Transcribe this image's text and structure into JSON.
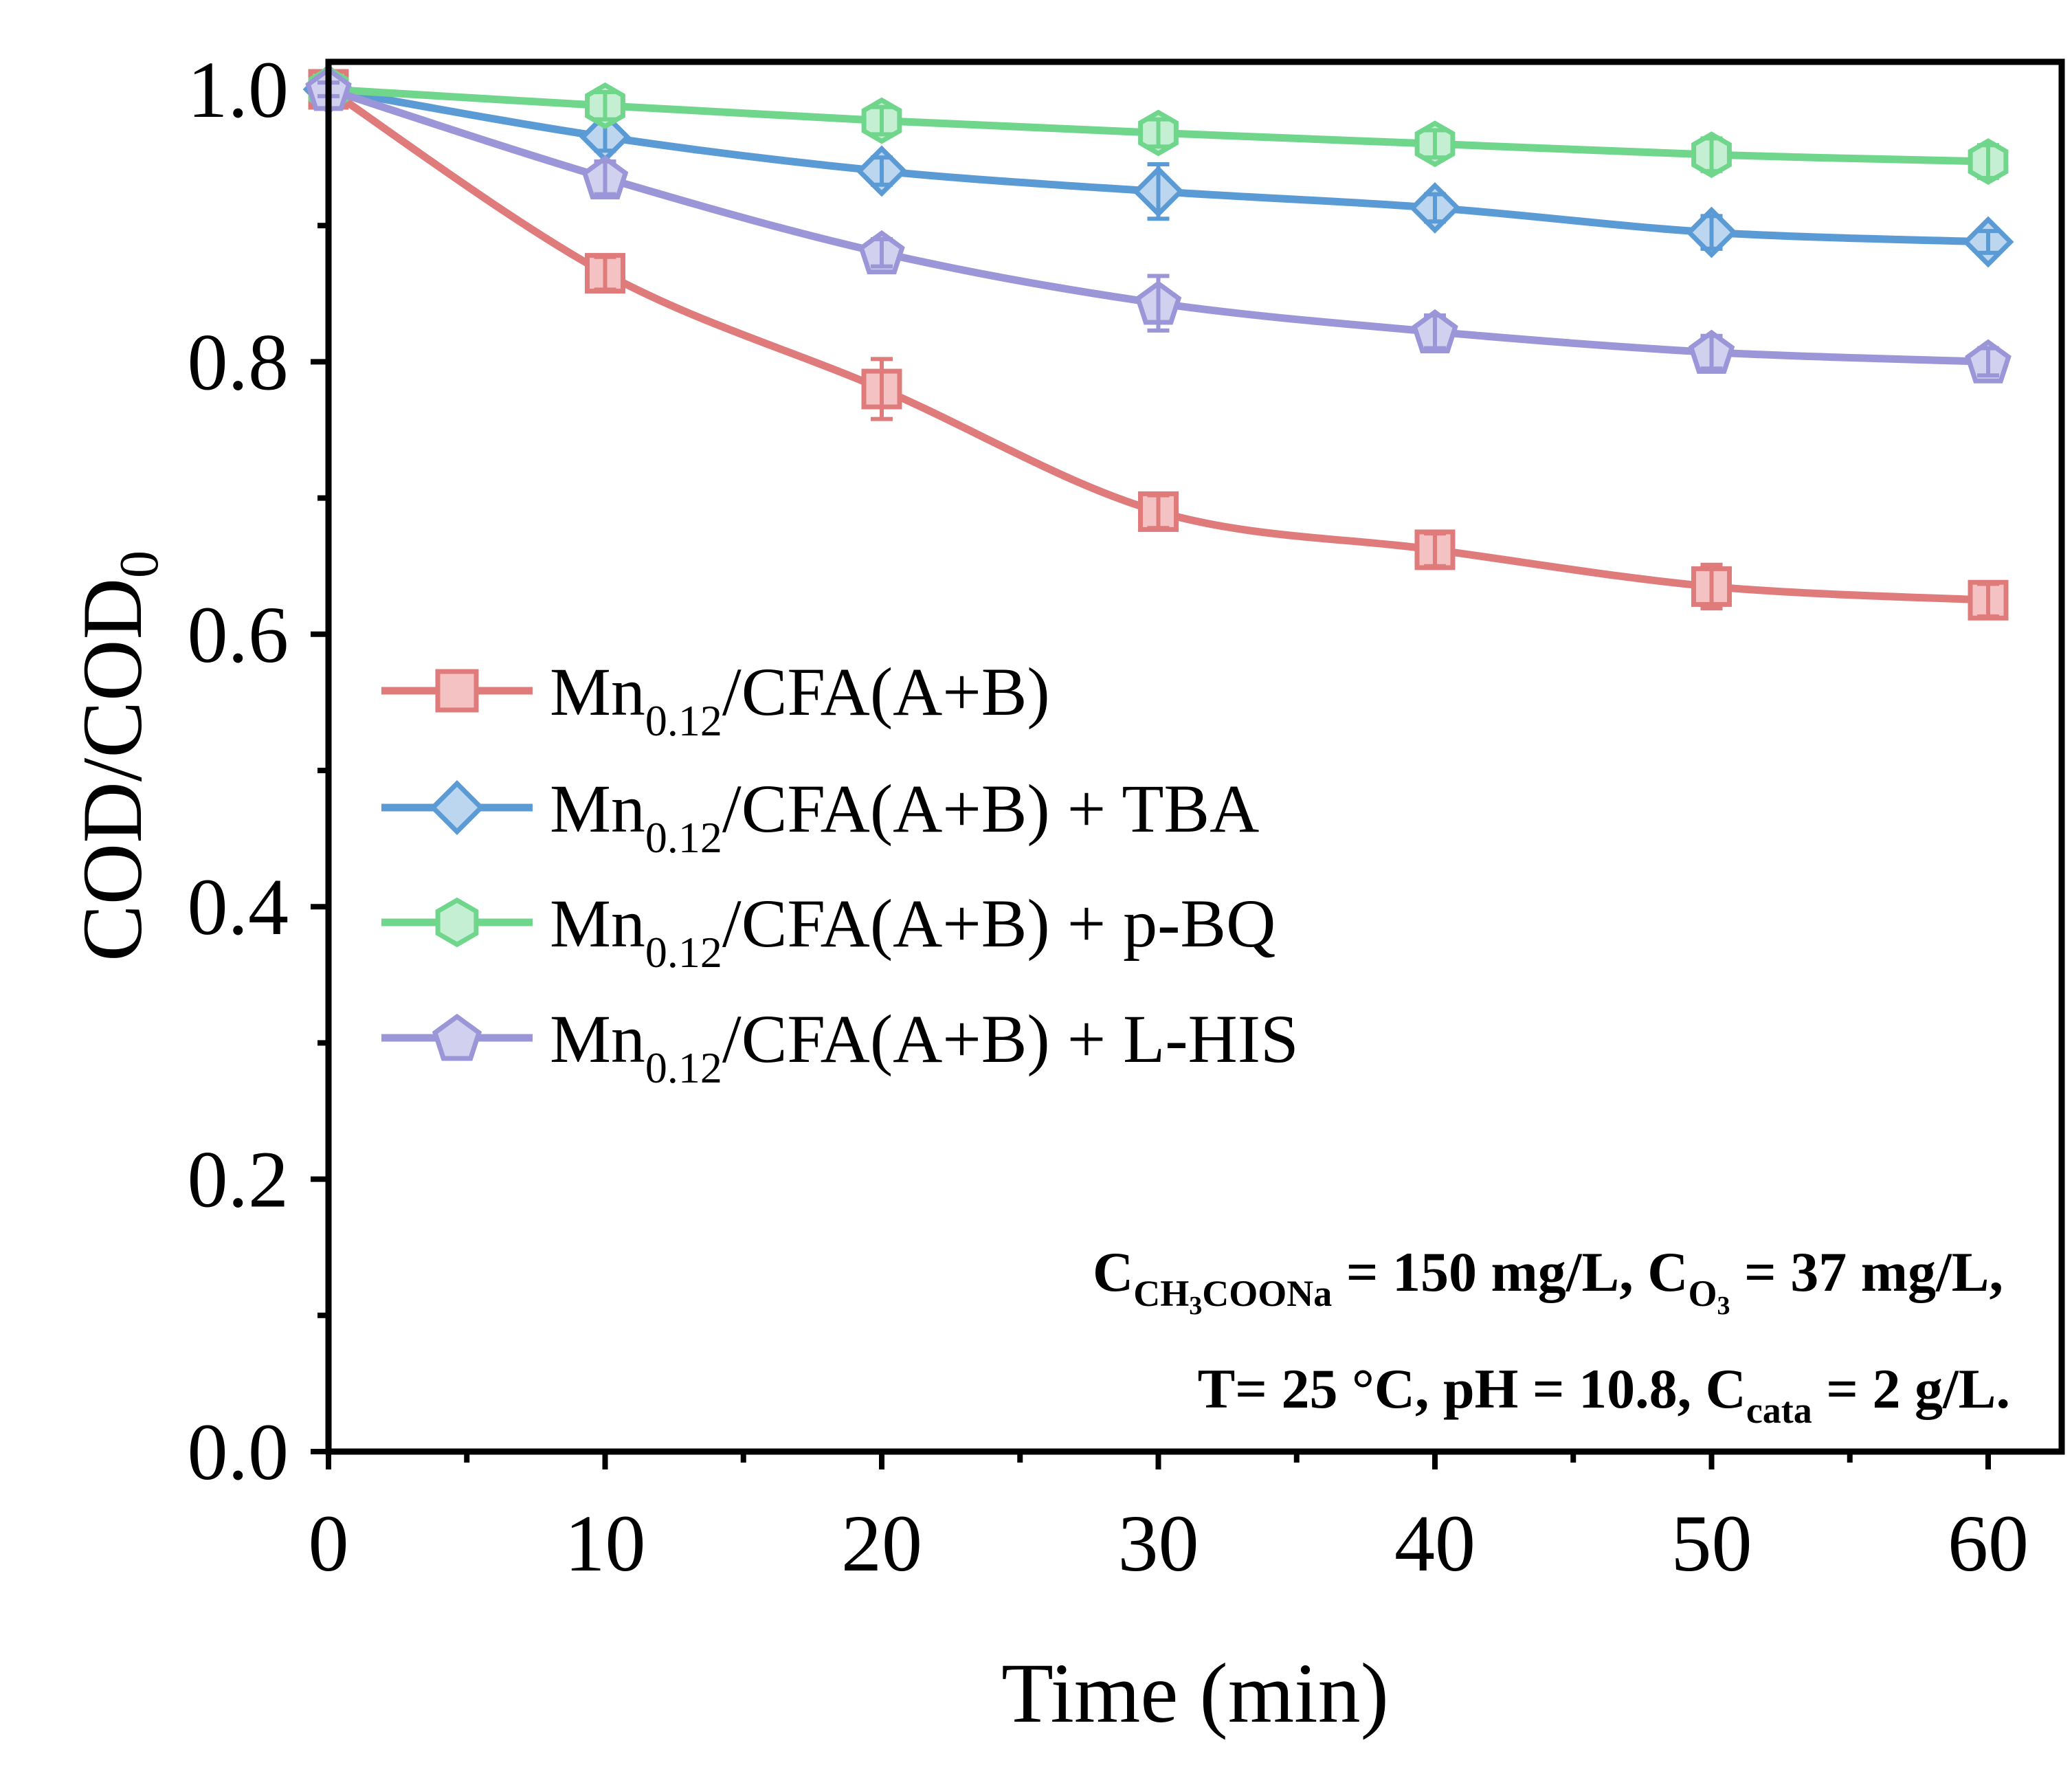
{
  "chart_data": {
    "type": "line",
    "title": "",
    "xlabel": "Time (min)",
    "ylabel": {
      "main": "COD/COD",
      "sub": "0"
    },
    "xlim": [
      0,
      60
    ],
    "ylim": [
      0.0,
      1.0
    ],
    "xticks": [
      "0",
      "10",
      "20",
      "30",
      "40",
      "50",
      "60"
    ],
    "yticks": [
      "0.0",
      "0.2",
      "0.4",
      "0.6",
      "0.8",
      "1.0"
    ],
    "x": [
      0,
      10,
      20,
      30,
      40,
      50,
      60
    ],
    "legend_position": "center-left",
    "series": [
      {
        "name": "Mn0.12/CFA(A+B)",
        "legend": {
          "pre": "Mn",
          "sub": "0.12",
          "post": "/CFA(A+B)"
        },
        "marker": "square",
        "color": "#e07b7b",
        "fill": "#f4c2c2",
        "values": [
          1.0,
          0.865,
          0.78,
          0.69,
          0.662,
          0.635,
          0.625
        ],
        "errors": [
          0.005,
          0.012,
          0.022,
          0.012,
          0.012,
          0.016,
          0.012
        ]
      },
      {
        "name": "Mn0.12/CFA(A+B) + TBA",
        "legend": {
          "pre": "Mn",
          "sub": "0.12",
          "post": "/CFA(A+B) + TBA"
        },
        "marker": "diamond",
        "color": "#5b9bd5",
        "fill": "#bcd6ef",
        "values": [
          1.0,
          0.965,
          0.94,
          0.925,
          0.913,
          0.895,
          0.888
        ],
        "errors": [
          0.005,
          0.01,
          0.01,
          0.02,
          0.01,
          0.012,
          0.008
        ]
      },
      {
        "name": "Mn0.12/CFA(A+B) + p-BQ",
        "legend": {
          "pre": "Mn",
          "sub": "0.12",
          "post": "/CFA(A+B) + p-BQ"
        },
        "marker": "hexagon",
        "color": "#6fd68c",
        "fill": "#c5efd2",
        "values": [
          1.0,
          0.988,
          0.977,
          0.968,
          0.96,
          0.952,
          0.947
        ],
        "errors": [
          0.005,
          0.01,
          0.01,
          0.01,
          0.01,
          0.012,
          0.012
        ]
      },
      {
        "name": "Mn0.12/CFA(A+B) + L-HIS",
        "legend": {
          "pre": "Mn",
          "sub": "0.12",
          "post": "/CFA(A+B) + L-HIS"
        },
        "marker": "pentagon",
        "color": "#9b96d8",
        "fill": "#d2d0ef",
        "values": [
          1.0,
          0.935,
          0.88,
          0.843,
          0.822,
          0.807,
          0.8
        ],
        "errors": [
          0.005,
          0.012,
          0.01,
          0.02,
          0.012,
          0.012,
          0.01
        ]
      }
    ],
    "annotation": {
      "line1": {
        "c1": "C",
        "c1_sub_a": "CH",
        "c1_sub_b": "3",
        "c1_sub_c": "COONa",
        "mid": " = 150 mg/L, C",
        "c2_sub_a": "O",
        "c2_sub_b": "3",
        "end": " = 37 mg/L,"
      },
      "line2": {
        "pre": "T= 25 °C, pH = 10.8, C",
        "sub": "cata",
        "post": " = 2 g/L."
      }
    }
  }
}
